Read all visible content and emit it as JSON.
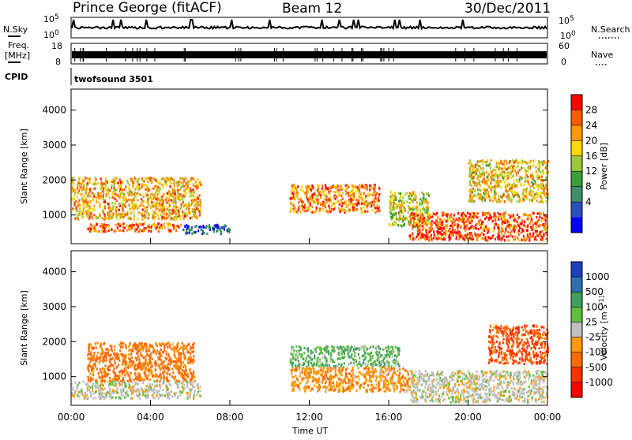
{
  "header": {
    "title": "Prince George (fitACF)",
    "beam": "Beam 12",
    "date": "30/Dec/2011"
  },
  "strips": {
    "nsky_label": "N.Sky",
    "freq_label_line1": "Freq.",
    "freq_label_line2": "[MHz]",
    "cpid_label": "CPID",
    "cpid_value": "twofsound 3501",
    "nsearch_label": "N.Search",
    "nave_label": "Nave",
    "nsky_ticks": [
      "10^5",
      "10^0"
    ],
    "nsearch_ticks": [
      "10^5",
      "10^0"
    ],
    "freq_ticks": [
      "18",
      "8"
    ],
    "nave_ticks": [
      "60",
      "0"
    ]
  },
  "colors": {
    "power_scale": [
      "#0000ff",
      "#2b4fc0",
      "#3f8f6a",
      "#3a9e3a",
      "#9cc93a",
      "#ffd700",
      "#ff9a00",
      "#ff5a00",
      "#ff0000"
    ],
    "velocity_scale": [
      "#1f3fbf",
      "#2f6fb0",
      "#3f9f5f",
      "#5fbf3f",
      "#c0c0c0",
      "#ff9a00",
      "#ff6a00",
      "#ff3000",
      "#ff0000"
    ]
  },
  "chart_data": [
    {
      "type": "heatmap",
      "name": "power",
      "ylabel": "Slant Range [km]",
      "xlabel": "",
      "ylim": [
        180,
        4600
      ],
      "yticks": [
        "1000",
        "2000",
        "3000",
        "4000"
      ],
      "xlim_hours": [
        0,
        24
      ],
      "colorbar": {
        "label": "Power [dB]",
        "range": [
          0,
          32
        ],
        "ticks": [
          "4",
          "8",
          "12",
          "16",
          "20",
          "24",
          "28"
        ]
      },
      "regions": [
        {
          "t0": 0.0,
          "t1": 6.5,
          "r0": 900,
          "r1": 2100,
          "value": 22
        },
        {
          "t0": 0.8,
          "t1": 5.5,
          "r0": 550,
          "r1": 800,
          "value": 26
        },
        {
          "t0": 5.5,
          "t1": 8.0,
          "r0": 500,
          "r1": 750,
          "value": 6
        },
        {
          "t0": 11.0,
          "t1": 15.5,
          "r0": 1100,
          "r1": 1900,
          "value": 24
        },
        {
          "t0": 16.0,
          "t1": 18.0,
          "r0": 700,
          "r1": 1700,
          "value": 18
        },
        {
          "t0": 17.0,
          "t1": 24.0,
          "r0": 300,
          "r1": 1100,
          "value": 27
        },
        {
          "t0": 20.0,
          "t1": 24.0,
          "r0": 1400,
          "r1": 2600,
          "value": 20
        }
      ]
    },
    {
      "type": "heatmap",
      "name": "velocity",
      "ylabel": "Slant Range [km]",
      "xlabel": "Time UT",
      "ylim": [
        180,
        4600
      ],
      "yticks": [
        "1000",
        "2000",
        "3000",
        "4000"
      ],
      "xticks": [
        "00:00",
        "04:00",
        "08:00",
        "12:00",
        "16:00",
        "20:00",
        "00:00"
      ],
      "colorbar": {
        "label": "Velocity [m s^-1]",
        "ticks": [
          "1000",
          "500",
          "100",
          "25",
          "-25",
          "-100",
          "-500",
          "-1000"
        ]
      },
      "regions": [
        {
          "t0": 0.0,
          "t1": 6.5,
          "r0": 400,
          "r1": 900,
          "value": 0
        },
        {
          "t0": 0.8,
          "t1": 6.2,
          "r0": 900,
          "r1": 2000,
          "value": -150
        },
        {
          "t0": 11.0,
          "t1": 16.5,
          "r0": 1300,
          "r1": 1900,
          "value": 50
        },
        {
          "t0": 11.0,
          "t1": 17.0,
          "r0": 600,
          "r1": 1300,
          "value": -80
        },
        {
          "t0": 17.0,
          "t1": 24.0,
          "r0": 300,
          "r1": 1200,
          "value": 0
        },
        {
          "t0": 21.0,
          "t1": 24.0,
          "r0": 1400,
          "r1": 2500,
          "value": -300
        }
      ]
    }
  ]
}
